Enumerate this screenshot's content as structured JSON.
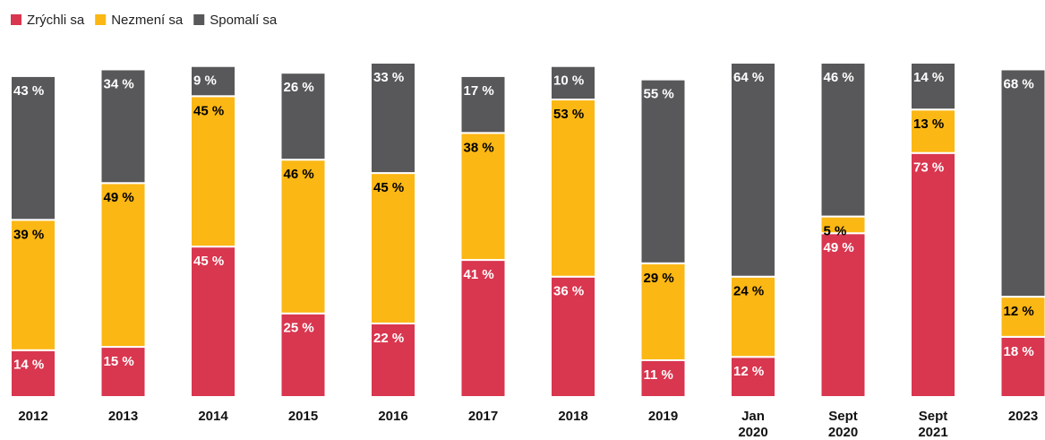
{
  "chart_data": {
    "type": "stacked_bar",
    "categories": [
      "2012",
      "2013",
      "2014",
      "2015",
      "2016",
      "2017",
      "2018",
      "2019",
      "Jan 2020",
      "Sept 2020",
      "Sept 2021",
      "2023"
    ],
    "ylim": [
      0,
      100
    ],
    "legend": "top-left",
    "series": [
      {
        "name": "Zrýchli sa",
        "color": "#d9364f",
        "label_color": "#ffffff",
        "values": [
          14,
          15,
          45,
          25,
          22,
          41,
          36,
          11,
          12,
          49,
          73,
          18
        ],
        "value_labels": [
          "14 %",
          "15 %",
          "45 %",
          "25 %",
          "22 %",
          "41 %",
          "36 %",
          "11 %",
          "12 %",
          "49 %",
          "73 %",
          "18 %"
        ]
      },
      {
        "name": "Nezmení sa",
        "color": "#fbb714",
        "label_color": "#000000",
        "values": [
          39,
          49,
          45,
          46,
          45,
          38,
          53,
          29,
          24,
          5,
          13,
          12
        ],
        "value_labels": [
          "39 %",
          "49 %",
          "45 %",
          "46 %",
          "45 %",
          "38 %",
          "53 %",
          "29 %",
          "24 %",
          "5 %",
          "13 %",
          "12 %"
        ]
      },
      {
        "name": "Spomalí sa",
        "color": "#58585a",
        "label_color": "#ffffff",
        "values": [
          43,
          34,
          9,
          26,
          33,
          17,
          10,
          55,
          64,
          46,
          14,
          68
        ],
        "value_labels": [
          "43 %",
          "34 %",
          "9 %",
          "26 %",
          "33 %",
          "17 %",
          "10 %",
          "55 %",
          "64 %",
          "46 %",
          "14 %",
          "68 %"
        ]
      }
    ]
  }
}
